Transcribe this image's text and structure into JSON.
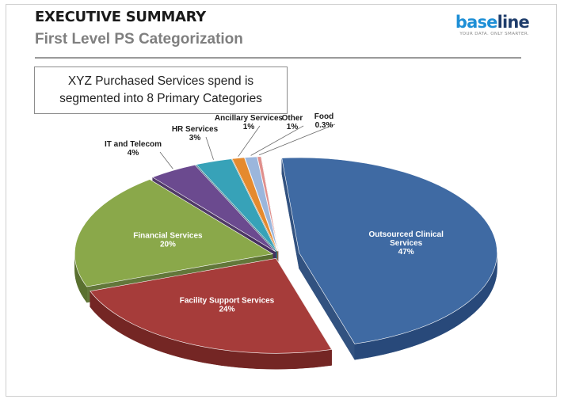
{
  "header": {
    "title": "EXECUTIVE SUMMARY",
    "subtitle": "First Level PS Categorization"
  },
  "logo": {
    "part1": "base",
    "part2": "line",
    "tagline": "YOUR DATA. ONLY SMARTER."
  },
  "callout": {
    "line1": "XYZ Purchased Services spend is",
    "line2": "segmented into 8 Primary Categories"
  },
  "chart_data": {
    "type": "pie",
    "title": "First Level PS Categorization",
    "slices": [
      {
        "name": "Outsourced Clinical Services",
        "label_lines": [
          "Outsourced  Clinical",
          "Services"
        ],
        "value_label": "47%",
        "value": 47,
        "color": "#3f6aa3",
        "side": "#28497a",
        "label_color": "#ffffff"
      },
      {
        "name": "Facility Support Services",
        "label_lines": [
          "Facility Support Services"
        ],
        "value_label": "24%",
        "value": 24,
        "color": "#a63c3a",
        "side": "#742624",
        "label_color": "#ffffff"
      },
      {
        "name": "Financial Services",
        "label_lines": [
          "Financial Services"
        ],
        "value_label": "20%",
        "value": 20,
        "color": "#8aa84a",
        "side": "#5a7030",
        "label_color": "#ffffff"
      },
      {
        "name": "IT and Telecom",
        "label_lines": [
          "IT and Telecom"
        ],
        "value_label": "4%",
        "value": 4,
        "color": "#6b4a8f",
        "side": "#47305f",
        "label_color": "#1a1a1a"
      },
      {
        "name": "HR Services",
        "label_lines": [
          "HR Services"
        ],
        "value_label": "3%",
        "value": 3,
        "color": "#37a2b8",
        "side": "#236a79",
        "label_color": "#1a1a1a"
      },
      {
        "name": "Ancillary Services",
        "label_lines": [
          "Ancillary Services"
        ],
        "value_label": "1%",
        "value": 1,
        "color": "#e58a2e",
        "side": "#a15f1d",
        "label_color": "#1a1a1a"
      },
      {
        "name": "Other",
        "label_lines": [
          "Other"
        ],
        "value_label": "1%",
        "value": 1,
        "color": "#9bb6dc",
        "side": "#6c84a6",
        "label_color": "#1a1a1a"
      },
      {
        "name": "Food",
        "label_lines": [
          "Food"
        ],
        "value_label": "0.3%",
        "value": 0.3,
        "color": "#e08f8c",
        "side": "#a66461",
        "label_color": "#1a1a1a"
      }
    ],
    "legend": "none",
    "style": "3d-exploded"
  }
}
